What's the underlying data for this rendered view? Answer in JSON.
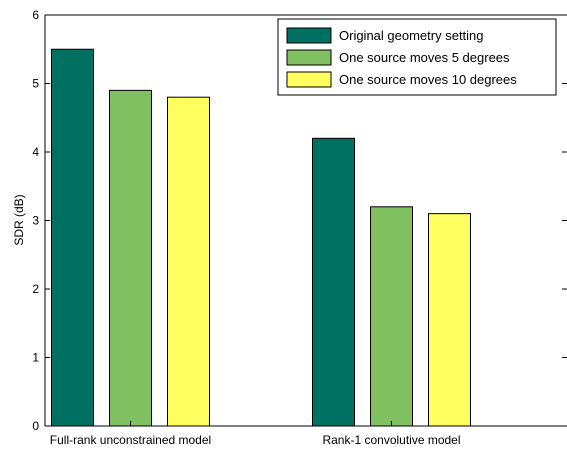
{
  "chart_data": {
    "type": "bar",
    "title": "",
    "xlabel": "",
    "ylabel": "SDR (dB)",
    "ylim": [
      0,
      6
    ],
    "yticks": [
      0,
      1,
      2,
      3,
      4,
      5,
      6
    ],
    "categories": [
      "Full-rank unconstrained model",
      "Rank-1 convolutive model"
    ],
    "series": [
      {
        "name": "Original geometry setting",
        "color": "#007060",
        "values": [
          5.5,
          4.2
        ]
      },
      {
        "name": "One source moves 5 degrees",
        "color": "#80c060",
        "values": [
          4.9,
          3.2
        ]
      },
      {
        "name": "One source moves 10 degrees",
        "color": "#ffff60",
        "values": [
          4.8,
          3.1
        ]
      }
    ],
    "legend_position": "top-right",
    "grid": false
  }
}
